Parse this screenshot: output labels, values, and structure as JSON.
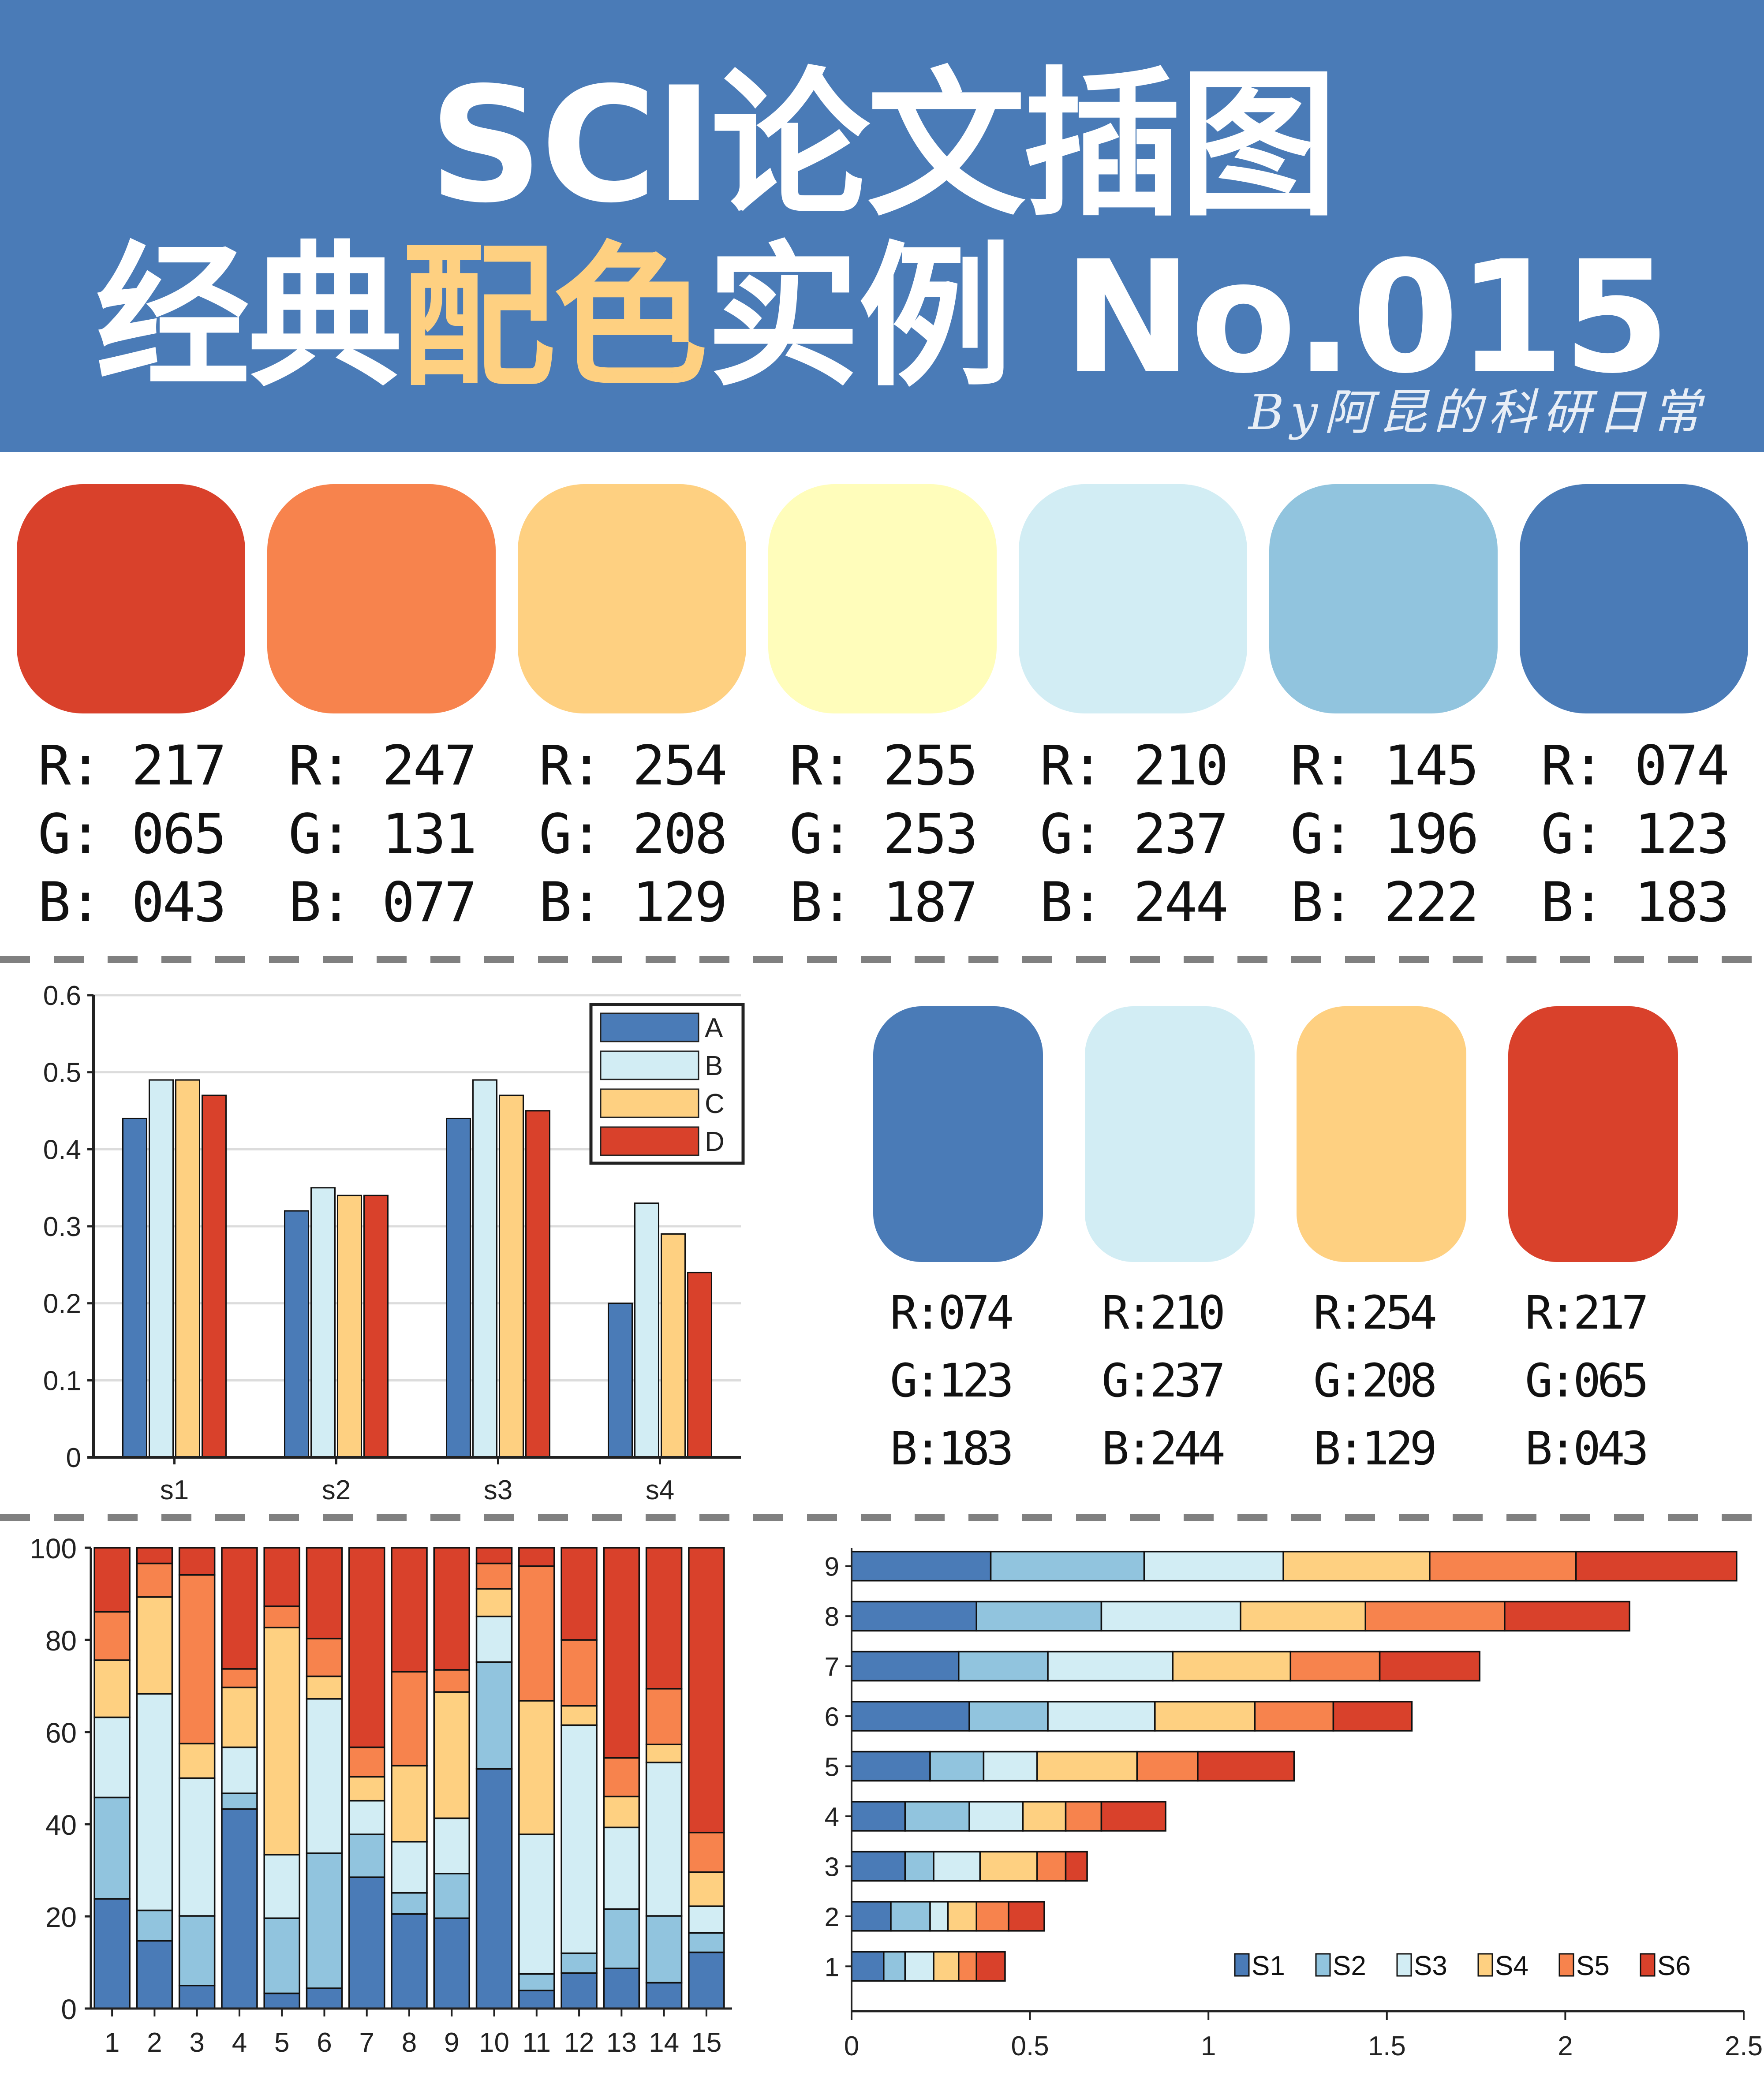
{
  "header": {
    "title_line1": "SCI论文插图",
    "title_line2_pre": "经典",
    "title_line2_highlight": "配色",
    "title_line2_post": "实例 No.015",
    "byline": "By阿昆的科研日常",
    "background": "#4A7BB7",
    "highlight_color": "#FED081"
  },
  "palette7": [
    {
      "hex": "#D9412B",
      "r": "R: 217",
      "g": "G: 065",
      "b": "B: 043"
    },
    {
      "hex": "#F7834D",
      "r": "R: 247",
      "g": "G: 131",
      "b": "B: 077"
    },
    {
      "hex": "#FED081",
      "r": "R: 254",
      "g": "G: 208",
      "b": "B: 129"
    },
    {
      "hex": "#FFFDBB",
      "r": "R: 255",
      "g": "G: 253",
      "b": "B: 187"
    },
    {
      "hex": "#D2EDF4",
      "r": "R: 210",
      "g": "G: 237",
      "b": "B: 244"
    },
    {
      "hex": "#91C4DE",
      "r": "R: 145",
      "g": "G: 196",
      "b": "B: 222"
    },
    {
      "hex": "#4A7BB7",
      "r": "R: 074",
      "g": "G: 123",
      "b": "B: 183"
    }
  ],
  "palette4": [
    {
      "hex": "#4A7BB7",
      "r": "R:074",
      "g": "G:123",
      "b": "B:183"
    },
    {
      "hex": "#D2EDF4",
      "r": "R:210",
      "g": "G:237",
      "b": "B:244"
    },
    {
      "hex": "#FED081",
      "r": "R:254",
      "g": "G:208",
      "b": "B:129"
    },
    {
      "hex": "#D9412B",
      "r": "R:217",
      "g": "G:065",
      "b": "B:043"
    }
  ],
  "chart_data": [
    {
      "type": "bar",
      "title": "",
      "xlabel": "",
      "ylabel": "",
      "categories": [
        "s1",
        "s2",
        "s3",
        "s4"
      ],
      "series": [
        {
          "name": "A",
          "color": "#4A7BB7",
          "values": [
            0.44,
            0.32,
            0.44,
            0.2
          ]
        },
        {
          "name": "B",
          "color": "#D2EDF4",
          "values": [
            0.49,
            0.35,
            0.49,
            0.33
          ]
        },
        {
          "name": "C",
          "color": "#FED081",
          "values": [
            0.49,
            0.34,
            0.47,
            0.29
          ]
        },
        {
          "name": "D",
          "color": "#D9412B",
          "values": [
            0.47,
            0.34,
            0.45,
            0.24
          ]
        }
      ],
      "ylim": [
        0,
        0.6
      ],
      "yticks": [
        "0",
        "0.1",
        "0.2",
        "0.3",
        "0.4",
        "0.5",
        "0.6"
      ],
      "grid": true,
      "legend_position": "upper right"
    },
    {
      "type": "bar",
      "stacked": true,
      "title": "",
      "xlabel": "",
      "ylabel": "",
      "categories": [
        "1",
        "2",
        "3",
        "4",
        "5",
        "6",
        "7",
        "8",
        "9",
        "10",
        "11",
        "12",
        "13",
        "14",
        "15"
      ],
      "series": [
        {
          "name": "S1",
          "color": "#4A7BB7",
          "values": [
            23.8,
            14.7,
            5.0,
            43.3,
            3.3,
            4.4,
            28.5,
            20.5,
            19.6,
            52.0,
            3.9,
            7.7,
            8.7,
            5.6,
            12.2
          ]
        },
        {
          "name": "S2",
          "color": "#91C4DE",
          "values": [
            22.0,
            6.6,
            15.1,
            3.4,
            16.3,
            29.3,
            9.3,
            4.6,
            9.7,
            23.2,
            3.6,
            4.3,
            12.9,
            14.5,
            4.2
          ]
        },
        {
          "name": "S3",
          "color": "#D2EDF4",
          "values": [
            17.4,
            47.0,
            29.9,
            10.0,
            13.8,
            33.5,
            7.3,
            11.1,
            12.0,
            9.9,
            30.3,
            49.5,
            17.7,
            33.3,
            5.8
          ]
        },
        {
          "name": "S4",
          "color": "#FED081",
          "values": [
            12.4,
            21.0,
            7.5,
            13.0,
            49.3,
            4.9,
            5.2,
            16.5,
            27.4,
            6.0,
            29.0,
            4.2,
            6.7,
            3.9,
            7.4
          ]
        },
        {
          "name": "S5",
          "color": "#F7834D",
          "values": [
            10.5,
            7.3,
            36.6,
            4.0,
            4.6,
            8.2,
            6.4,
            20.4,
            4.8,
            5.5,
            29.2,
            14.3,
            8.4,
            12.1,
            8.6
          ]
        },
        {
          "name": "S6",
          "color": "#D9412B",
          "values": [
            13.9,
            3.4,
            5.9,
            26.3,
            12.7,
            19.7,
            43.3,
            26.9,
            26.5,
            3.4,
            4.0,
            20.0,
            45.6,
            30.6,
            61.8
          ]
        }
      ],
      "ylim": [
        0,
        100
      ],
      "yticks": [
        "0",
        "20",
        "40",
        "60",
        "80",
        "100"
      ],
      "grid": false
    },
    {
      "type": "bar",
      "orientation": "horizontal",
      "stacked": true,
      "title": "",
      "xlabel": "",
      "ylabel": "",
      "categories": [
        "1",
        "2",
        "3",
        "4",
        "5",
        "6",
        "7",
        "8",
        "9"
      ],
      "series": [
        {
          "name": "S1",
          "color": "#4A7BB7",
          "values": [
            0.09,
            0.11,
            0.15,
            0.15,
            0.22,
            0.33,
            0.3,
            0.35,
            0.39
          ]
        },
        {
          "name": "S2",
          "color": "#91C4DE",
          "values": [
            0.06,
            0.11,
            0.08,
            0.18,
            0.15,
            0.22,
            0.25,
            0.35,
            0.43
          ]
        },
        {
          "name": "S3",
          "color": "#D2EDF4",
          "values": [
            0.08,
            0.05,
            0.13,
            0.15,
            0.15,
            0.3,
            0.35,
            0.39,
            0.39
          ]
        },
        {
          "name": "S4",
          "color": "#FED081",
          "values": [
            0.07,
            0.08,
            0.16,
            0.12,
            0.28,
            0.28,
            0.33,
            0.35,
            0.41
          ]
        },
        {
          "name": "S5",
          "color": "#F7834D",
          "values": [
            0.05,
            0.09,
            0.08,
            0.1,
            0.17,
            0.22,
            0.25,
            0.39,
            0.41
          ]
        },
        {
          "name": "S6",
          "color": "#D9412B",
          "values": [
            0.08,
            0.1,
            0.06,
            0.18,
            0.27,
            0.22,
            0.28,
            0.35,
            0.45
          ]
        }
      ],
      "xlim": [
        0,
        2.5
      ],
      "xticks": [
        "0",
        "0.5",
        "1",
        "1.5",
        "2",
        "2.5"
      ],
      "grid": false,
      "legend_position": "lower right"
    }
  ]
}
